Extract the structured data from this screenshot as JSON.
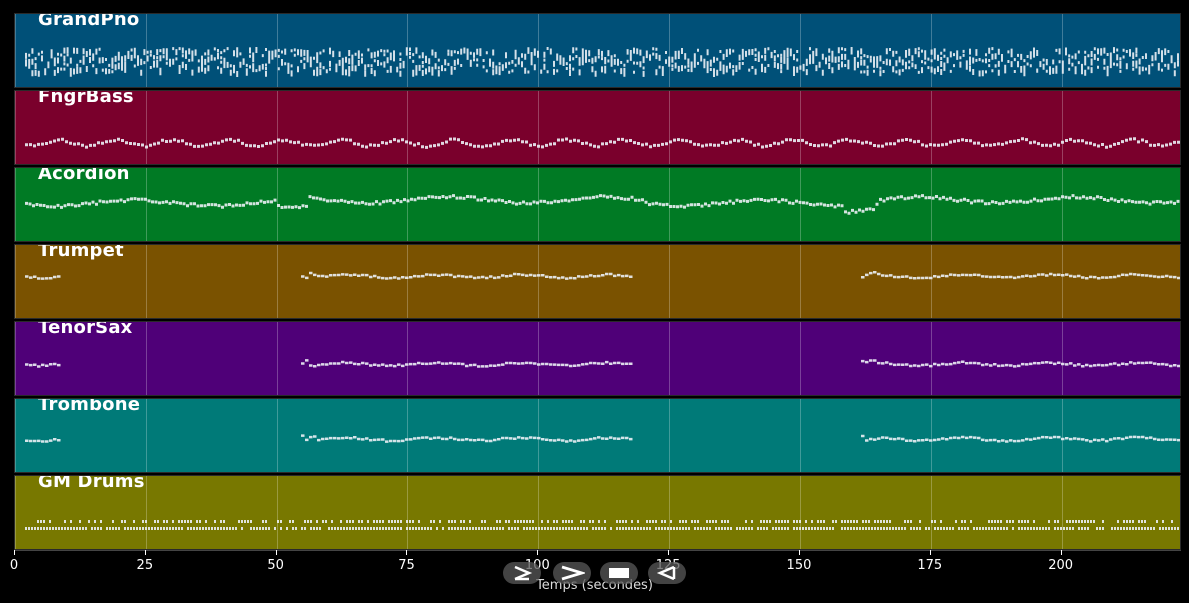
{
  "tracks": [
    {
      "name": "GrandPno",
      "color": "#005078",
      "pattern": "dense"
    },
    {
      "name": "FngrBass",
      "color": "#7a002c",
      "pattern": "bass"
    },
    {
      "name": "Acordion",
      "color": "#007a24",
      "pattern": "melody"
    },
    {
      "name": "Trumpet",
      "color": "#7a5200",
      "pattern": "section"
    },
    {
      "name": "TenorSax",
      "color": "#4f0078",
      "pattern": "section"
    },
    {
      "name": "Trombone",
      "color": "#007a78",
      "pattern": "section"
    },
    {
      "name": "GM Drums",
      "color": "#787800",
      "pattern": "drums"
    }
  ],
  "axis": {
    "xlabel": "Temps (secondes)",
    "xlim": [
      0,
      223
    ],
    "ticks": [
      {
        "value": 0,
        "label": "0"
      },
      {
        "value": 25,
        "label": "25"
      },
      {
        "value": 50,
        "label": "50"
      },
      {
        "value": 75,
        "label": "75"
      },
      {
        "value": 100,
        "label": "100"
      },
      {
        "value": 125,
        "label": "125"
      },
      {
        "value": 150,
        "label": "150"
      },
      {
        "value": 175,
        "label": "175"
      },
      {
        "value": 200,
        "label": "200"
      }
    ]
  },
  "controls": [
    {
      "name": "play-from-start-icon"
    },
    {
      "name": "play-icon"
    },
    {
      "name": "stop-icon"
    },
    {
      "name": "rewind-icon"
    }
  ]
}
